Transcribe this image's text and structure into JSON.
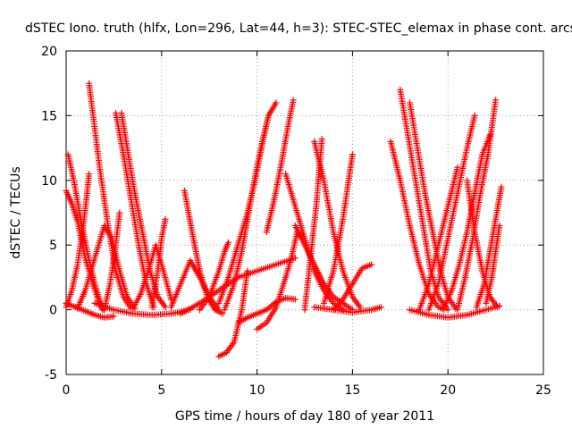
{
  "chart_data": {
    "type": "scatter",
    "title": "dSTEC Iono. truth (hlfx, Lon=296, Lat=44, h=3): STEC-STEC_elemax in phase cont. arcs",
    "xlabel": "GPS time / hours of day 180 of year 2011",
    "ylabel": "dSTEC  / TECUs",
    "xlim": [
      0,
      25
    ],
    "ylim": [
      -5,
      20
    ],
    "xticks": [
      0,
      5,
      10,
      15,
      20,
      25
    ],
    "yticks": [
      -5,
      0,
      5,
      10,
      15,
      20
    ],
    "grid": true,
    "marker": "+",
    "color": "#ff0000",
    "series": [
      {
        "x": [
          0.0,
          0.3,
          0.6,
          1.0,
          1.4,
          1.7,
          1.9
        ],
        "y": [
          9.2,
          8.2,
          6.8,
          4.0,
          2.0,
          0.7,
          0.0
        ]
      },
      {
        "x": [
          0.1,
          0.4,
          0.7,
          1.1,
          1.5,
          1.8,
          2.0
        ],
        "y": [
          12.0,
          10.0,
          7.5,
          4.5,
          2.0,
          0.5,
          0.0
        ]
      },
      {
        "x": [
          0.0,
          0.3,
          0.6,
          0.9,
          1.1,
          1.2
        ],
        "y": [
          0.2,
          1.5,
          3.5,
          6.5,
          9.0,
          10.5
        ]
      },
      {
        "x": [
          0.0,
          0.5,
          1.0,
          1.5,
          2.0,
          2.5
        ],
        "y": [
          0.5,
          0.2,
          -0.1,
          -0.4,
          -0.6,
          -0.5
        ]
      },
      {
        "x": [
          1.2,
          1.5,
          1.8,
          2.2,
          2.6,
          3.0,
          3.4
        ],
        "y": [
          17.5,
          14.0,
          10.5,
          6.5,
          3.0,
          1.0,
          0.1
        ]
      },
      {
        "x": [
          0.6,
          1.0,
          1.5,
          2.0,
          2.4,
          2.8,
          3.2,
          3.6
        ],
        "y": [
          0.1,
          1.5,
          4.0,
          6.5,
          5.5,
          3.0,
          1.0,
          0.1
        ]
      },
      {
        "x": [
          2.6,
          3.0,
          3.4,
          3.8,
          4.2,
          4.6
        ],
        "y": [
          15.2,
          12.0,
          8.5,
          5.0,
          2.0,
          0.2
        ]
      },
      {
        "x": [
          2.9,
          3.2,
          3.6,
          4.0,
          4.4,
          4.8,
          5.2
        ],
        "y": [
          15.2,
          12.5,
          9.0,
          6.0,
          3.0,
          1.0,
          0.2
        ]
      },
      {
        "x": [
          2.0,
          2.3,
          2.6,
          2.8
        ],
        "y": [
          0.0,
          2.0,
          5.0,
          7.5
        ]
      },
      {
        "x": [
          3.5,
          3.9,
          4.3,
          4.7,
          5.1,
          5.5
        ],
        "y": [
          0.1,
          1.2,
          3.0,
          5.0,
          3.0,
          0.8
        ]
      },
      {
        "x": [
          4.5,
          4.8,
          5.0,
          5.2
        ],
        "y": [
          0.2,
          3.0,
          5.5,
          7.0
        ]
      },
      {
        "x": [
          1.5,
          2.5,
          3.5,
          4.5,
          5.5,
          6.5
        ],
        "y": [
          0.5,
          0.0,
          -0.3,
          -0.4,
          -0.3,
          0.0
        ]
      },
      {
        "x": [
          6.2,
          6.6,
          7.0,
          7.4,
          7.8,
          8.2
        ],
        "y": [
          9.2,
          6.0,
          3.0,
          1.0,
          0.0,
          -0.3
        ]
      },
      {
        "x": [
          5.5,
          6.0,
          6.5,
          7.0,
          7.5,
          8.0
        ],
        "y": [
          0.2,
          2.0,
          3.8,
          2.5,
          1.0,
          0.0
        ]
      },
      {
        "x": [
          7.0,
          7.5,
          8.0,
          8.3,
          8.5
        ],
        "y": [
          0.0,
          1.0,
          3.0,
          4.5,
          5.2
        ]
      },
      {
        "x": [
          6.0,
          7.0,
          8.0,
          9.0,
          10.0,
          11.0,
          12.0
        ],
        "y": [
          -0.3,
          0.5,
          1.5,
          2.5,
          3.0,
          3.5,
          4.0
        ]
      },
      {
        "x": [
          8.0,
          8.4,
          8.8,
          9.2,
          9.5
        ],
        "y": [
          -3.6,
          -3.3,
          -2.5,
          0.0,
          3.0
        ]
      },
      {
        "x": [
          8.3,
          8.8,
          9.2,
          9.5,
          9.8,
          10.2,
          10.6,
          11.0
        ],
        "y": [
          0.0,
          2.0,
          4.5,
          7.0,
          9.5,
          12.5,
          15.0,
          16.0
        ]
      },
      {
        "x": [
          8.0,
          8.5,
          9.0,
          9.5,
          9.9,
          10.3,
          10.6
        ],
        "y": [
          0.5,
          2.5,
          5.0,
          7.5,
          10.0,
          13.0,
          15.0
        ]
      },
      {
        "x": [
          9.0,
          9.5,
          10.0,
          10.5,
          11.0,
          11.5,
          12.0
        ],
        "y": [
          -1.0,
          -0.6,
          -0.3,
          0.0,
          0.6,
          0.9,
          0.8
        ]
      },
      {
        "x": [
          10.0,
          10.5,
          11.0,
          11.5,
          11.8,
          12.1
        ],
        "y": [
          -1.5,
          -1.0,
          0.2,
          2.5,
          4.0,
          6.0
        ]
      },
      {
        "x": [
          10.5,
          10.9,
          11.3,
          11.6,
          11.9
        ],
        "y": [
          6.0,
          8.5,
          11.5,
          14.0,
          16.2
        ]
      },
      {
        "x": [
          11.5,
          12.0,
          12.5,
          13.0,
          13.5,
          14.0,
          14.5
        ],
        "y": [
          10.5,
          8.0,
          5.5,
          3.0,
          1.5,
          0.5,
          0.0
        ]
      },
      {
        "x": [
          12.0,
          12.5,
          13.0,
          13.5,
          14.0,
          14.5,
          15.0
        ],
        "y": [
          6.5,
          5.0,
          3.5,
          2.0,
          1.0,
          0.5,
          0.0
        ]
      },
      {
        "x": [
          12.5,
          12.8,
          13.1,
          13.4
        ],
        "y": [
          0.0,
          4.0,
          8.0,
          13.2
        ]
      },
      {
        "x": [
          13.0,
          13.5,
          14.0,
          14.5,
          15.0,
          15.4
        ],
        "y": [
          13.0,
          10.0,
          6.0,
          3.0,
          1.0,
          0.2
        ]
      },
      {
        "x": [
          13.5,
          14.0,
          14.5,
          14.8,
          15.0
        ],
        "y": [
          0.5,
          3.0,
          7.0,
          10.0,
          12.0
        ]
      },
      {
        "x": [
          14.0,
          14.5,
          15.0,
          15.5,
          16.0
        ],
        "y": [
          0.0,
          0.8,
          2.0,
          3.2,
          3.5
        ]
      },
      {
        "x": [
          13.0,
          14.0,
          15.0,
          16.0,
          16.5
        ],
        "y": [
          0.2,
          0.0,
          -0.2,
          0.0,
          0.2
        ]
      },
      {
        "x": [
          17.0,
          17.5,
          18.0,
          18.5,
          19.0,
          19.5,
          19.8
        ],
        "y": [
          13.0,
          10.0,
          6.5,
          3.5,
          1.2,
          0.2,
          0.0
        ]
      },
      {
        "x": [
          17.5,
          17.9,
          18.3,
          18.7,
          19.1,
          19.5,
          20.0
        ],
        "y": [
          17.0,
          13.5,
          10.0,
          6.5,
          3.0,
          1.0,
          0.0
        ]
      },
      {
        "x": [
          18.0,
          18.4,
          18.8,
          19.2,
          19.6,
          20.0,
          20.4
        ],
        "y": [
          16.0,
          12.5,
          9.0,
          6.0,
          3.0,
          1.0,
          0.1
        ]
      },
      {
        "x": [
          18.5,
          19.0,
          19.5,
          20.0,
          20.5
        ],
        "y": [
          0.0,
          2.0,
          5.0,
          8.0,
          11.0
        ]
      },
      {
        "x": [
          19.0,
          19.5,
          20.0,
          20.5,
          21.0,
          21.4
        ],
        "y": [
          0.0,
          2.0,
          5.5,
          9.0,
          12.5,
          15.0
        ]
      },
      {
        "x": [
          19.8,
          20.2,
          20.6,
          21.0,
          21.4,
          21.8,
          22.2
        ],
        "y": [
          0.2,
          1.5,
          3.5,
          6.0,
          9.0,
          12.0,
          13.5
        ]
      },
      {
        "x": [
          20.5,
          20.9,
          21.3,
          21.7,
          22.1,
          22.5
        ],
        "y": [
          0.0,
          2.5,
          5.5,
          9.0,
          12.0,
          16.2
        ]
      },
      {
        "x": [
          21.0,
          21.4,
          21.8,
          22.2,
          22.6
        ],
        "y": [
          10.0,
          6.0,
          3.0,
          1.0,
          0.2
        ]
      },
      {
        "x": [
          21.5,
          21.9,
          22.2,
          22.5,
          22.8
        ],
        "y": [
          0.2,
          2.0,
          4.5,
          7.0,
          9.5
        ]
      },
      {
        "x": [
          22.0,
          22.3,
          22.5,
          22.7
        ],
        "y": [
          0.5,
          2.5,
          4.5,
          6.5
        ]
      },
      {
        "x": [
          18.0,
          19.0,
          20.0,
          21.0,
          22.0,
          22.7
        ],
        "y": [
          0.0,
          -0.4,
          -0.6,
          -0.4,
          0.0,
          0.3
        ]
      }
    ]
  }
}
